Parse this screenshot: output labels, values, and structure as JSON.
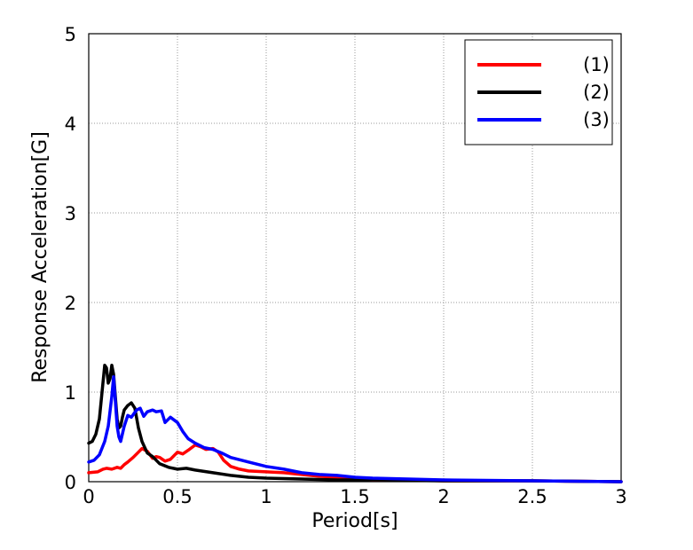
{
  "chart_data": {
    "type": "line",
    "title": "",
    "xlabel": "Period[s]",
    "ylabel": "Response Acceleration[G]",
    "xlim": [
      0,
      3
    ],
    "ylim": [
      0,
      5
    ],
    "x_ticks": [
      "0",
      "0.5",
      "1",
      "1.5",
      "2",
      "2.5",
      "3"
    ],
    "x_tick_values": [
      0,
      0.5,
      1,
      1.5,
      2,
      2.5,
      3
    ],
    "y_ticks": [
      "0",
      "1",
      "2",
      "3",
      "4",
      "5"
    ],
    "y_tick_values": [
      0,
      1,
      2,
      3,
      4,
      5
    ],
    "grid": true,
    "legend_position": "top-right",
    "series": [
      {
        "name": "(1)",
        "color": "#ff0000",
        "x": [
          0,
          0.05,
          0.08,
          0.1,
          0.13,
          0.16,
          0.18,
          0.2,
          0.22,
          0.25,
          0.28,
          0.3,
          0.33,
          0.36,
          0.38,
          0.4,
          0.43,
          0.46,
          0.5,
          0.53,
          0.56,
          0.6,
          0.63,
          0.66,
          0.7,
          0.73,
          0.76,
          0.8,
          0.85,
          0.9,
          1.0,
          1.1,
          1.2,
          1.3,
          1.4,
          1.5,
          1.6,
          1.8,
          2.0,
          2.5,
          3.0
        ],
        "y": [
          0.1,
          0.11,
          0.14,
          0.15,
          0.14,
          0.16,
          0.15,
          0.19,
          0.22,
          0.27,
          0.33,
          0.37,
          0.34,
          0.26,
          0.28,
          0.27,
          0.23,
          0.25,
          0.33,
          0.31,
          0.35,
          0.41,
          0.39,
          0.36,
          0.37,
          0.33,
          0.24,
          0.17,
          0.14,
          0.12,
          0.11,
          0.1,
          0.08,
          0.06,
          0.05,
          0.03,
          0.02,
          0.02,
          0.01,
          0.01,
          0.0
        ]
      },
      {
        "name": "(2)",
        "color": "#000000",
        "x": [
          0,
          0.02,
          0.04,
          0.06,
          0.08,
          0.09,
          0.1,
          0.11,
          0.12,
          0.13,
          0.14,
          0.15,
          0.16,
          0.17,
          0.18,
          0.19,
          0.2,
          0.22,
          0.24,
          0.26,
          0.28,
          0.3,
          0.33,
          0.36,
          0.4,
          0.45,
          0.5,
          0.55,
          0.6,
          0.7,
          0.8,
          0.9,
          1.0,
          1.2,
          1.4,
          1.6,
          2.0,
          2.5,
          3.0
        ],
        "y": [
          0.43,
          0.45,
          0.53,
          0.7,
          1.1,
          1.3,
          1.27,
          1.1,
          1.15,
          1.3,
          1.2,
          0.95,
          0.7,
          0.6,
          0.62,
          0.72,
          0.8,
          0.85,
          0.88,
          0.82,
          0.6,
          0.45,
          0.32,
          0.28,
          0.2,
          0.16,
          0.14,
          0.15,
          0.13,
          0.1,
          0.07,
          0.05,
          0.04,
          0.03,
          0.02,
          0.02,
          0.01,
          0.01,
          0.0
        ]
      },
      {
        "name": "(3)",
        "color": "#0000ff",
        "x": [
          0,
          0.03,
          0.06,
          0.09,
          0.11,
          0.13,
          0.14,
          0.15,
          0.16,
          0.17,
          0.18,
          0.2,
          0.22,
          0.24,
          0.27,
          0.29,
          0.31,
          0.33,
          0.36,
          0.38,
          0.41,
          0.43,
          0.46,
          0.5,
          0.53,
          0.56,
          0.6,
          0.65,
          0.7,
          0.75,
          0.8,
          0.9,
          1.0,
          1.1,
          1.2,
          1.3,
          1.4,
          1.5,
          1.6,
          1.8,
          2.0,
          2.5,
          3.0
        ],
        "y": [
          0.22,
          0.24,
          0.3,
          0.45,
          0.62,
          0.95,
          1.17,
          0.9,
          0.62,
          0.5,
          0.45,
          0.62,
          0.74,
          0.72,
          0.8,
          0.82,
          0.73,
          0.78,
          0.8,
          0.78,
          0.79,
          0.66,
          0.72,
          0.66,
          0.56,
          0.48,
          0.43,
          0.38,
          0.36,
          0.32,
          0.27,
          0.22,
          0.17,
          0.14,
          0.1,
          0.08,
          0.07,
          0.05,
          0.04,
          0.03,
          0.02,
          0.01,
          0.0
        ]
      }
    ]
  }
}
